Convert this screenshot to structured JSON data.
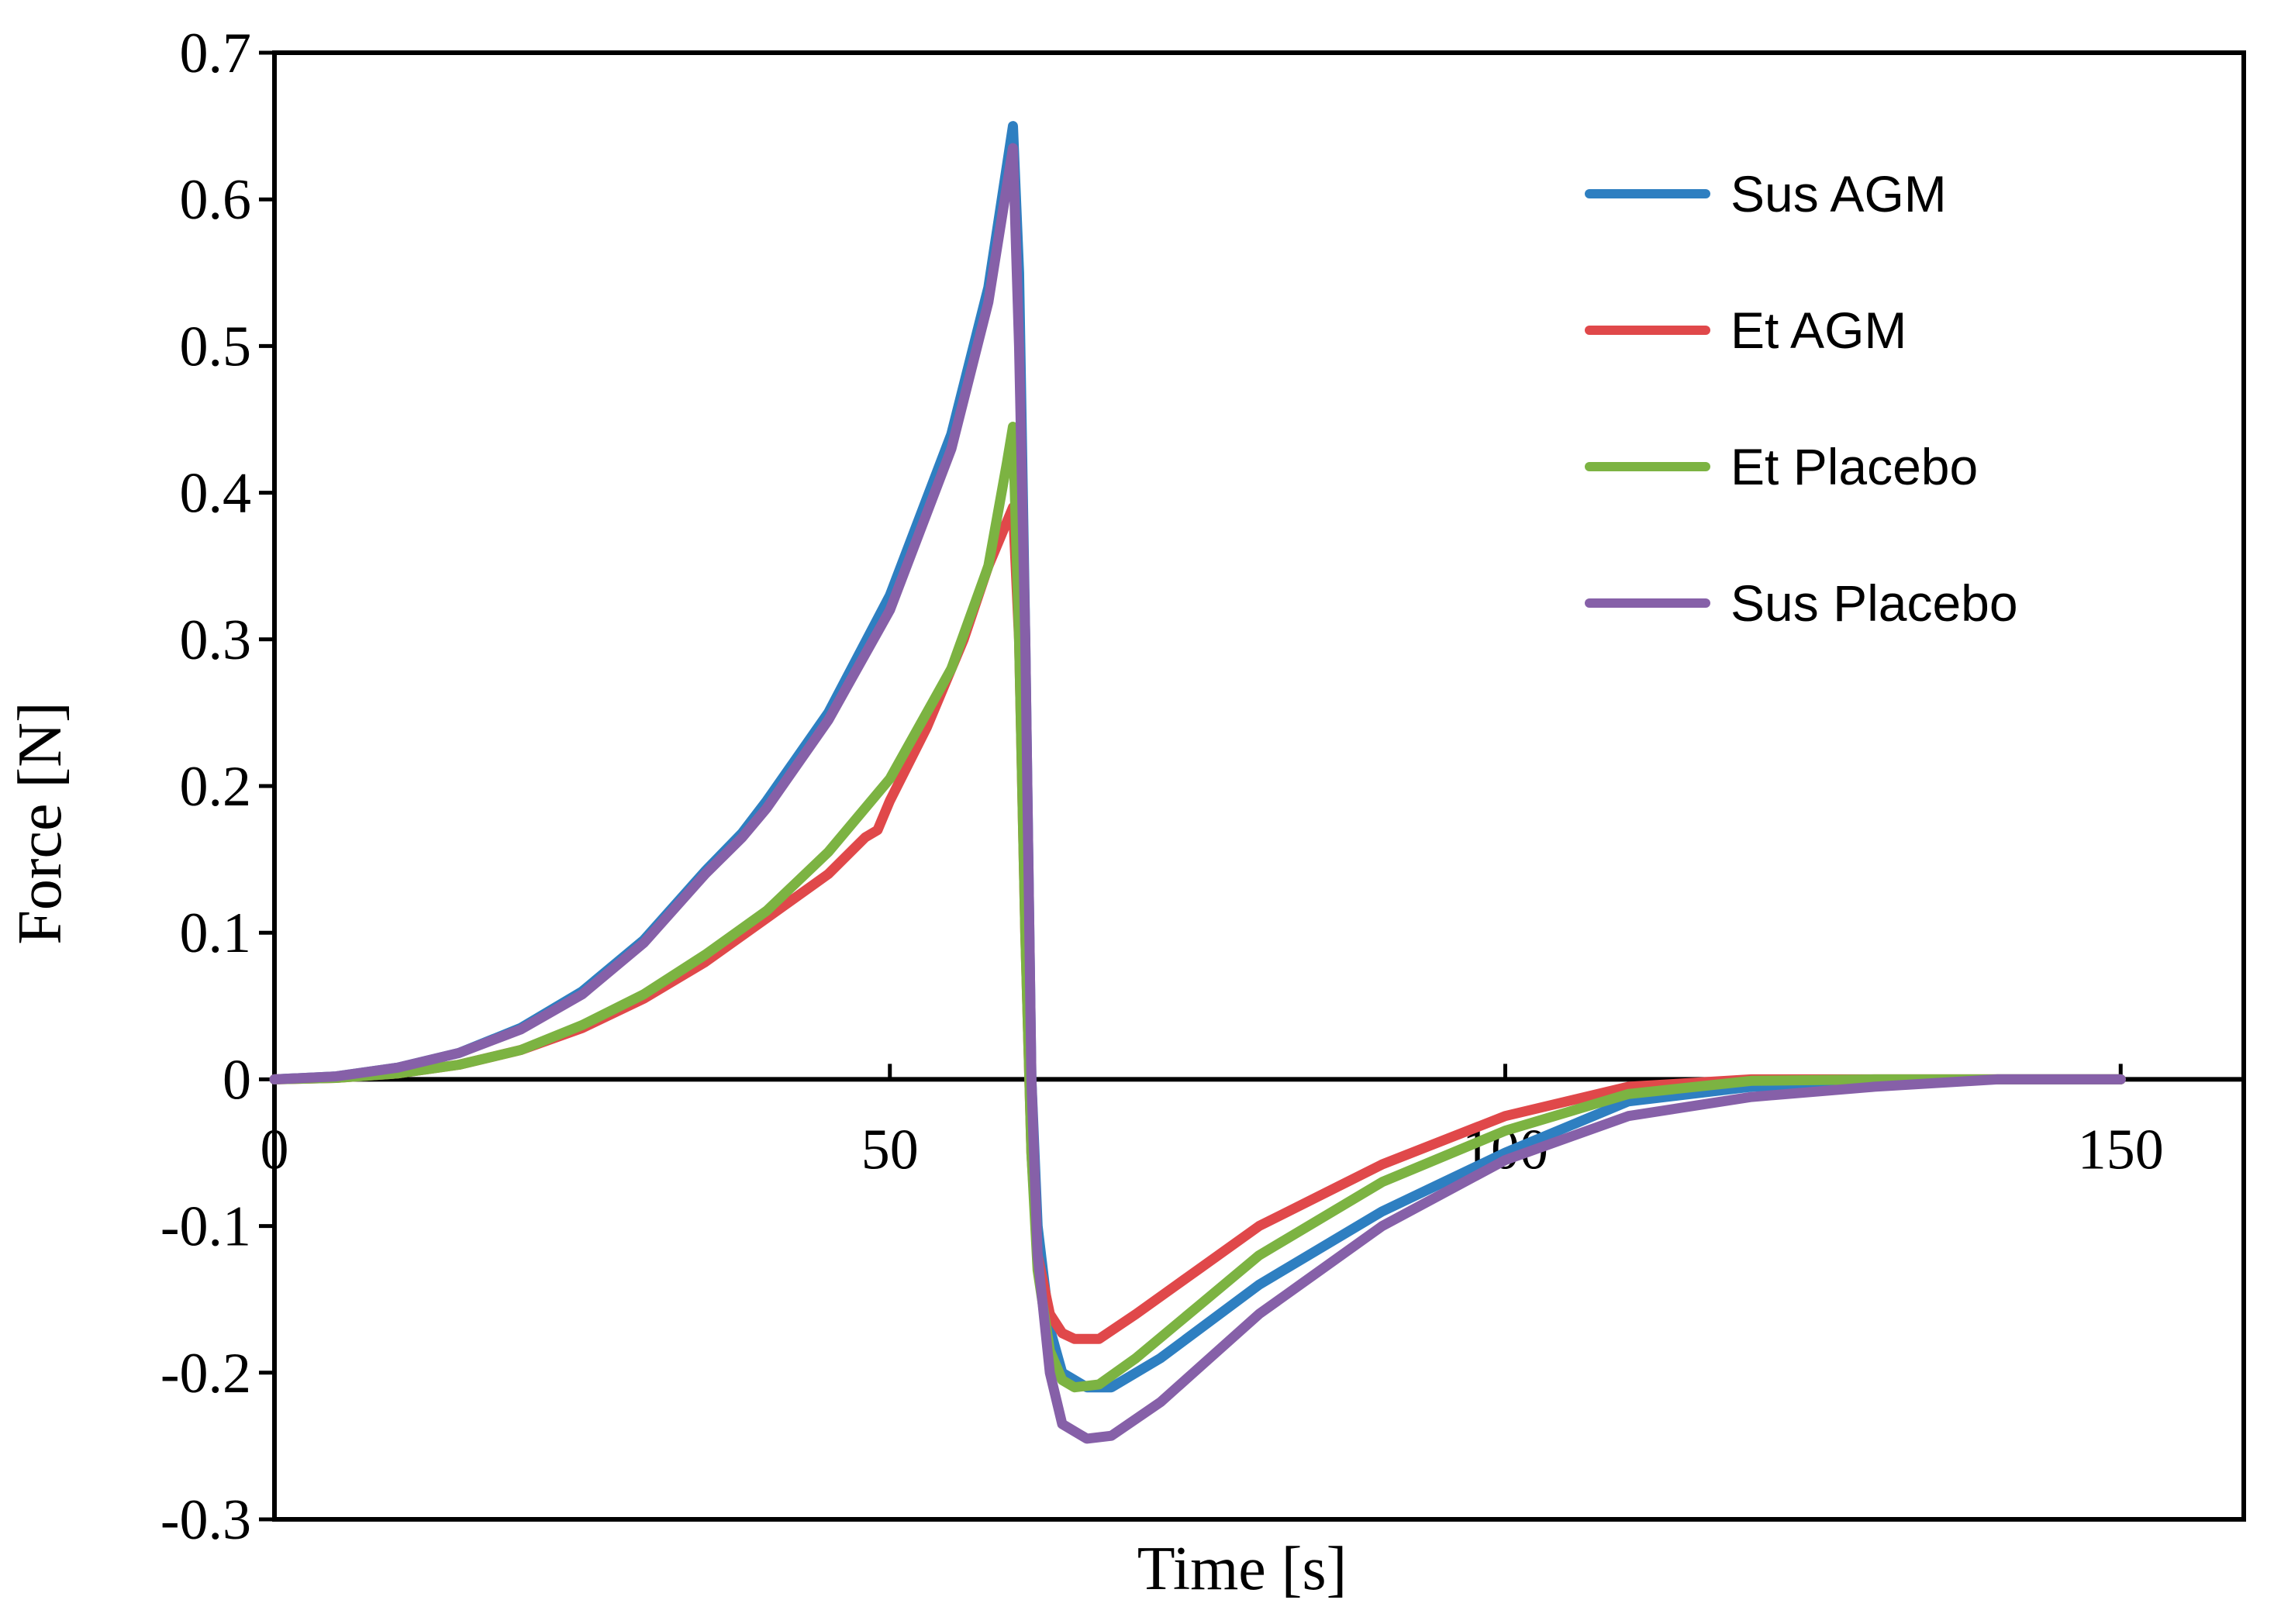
{
  "chart_data": {
    "type": "line",
    "title": "",
    "xlabel": "Time [s]",
    "ylabel": "Force [N]",
    "xlim": [
      0,
      160
    ],
    "ylim": [
      -0.3,
      0.7
    ],
    "xticks": [
      0,
      50,
      100,
      150
    ],
    "xtick_labels": [
      "0",
      "50",
      "100",
      "150"
    ],
    "yticks": [
      0.7,
      0.6,
      0.5,
      0.4,
      0.3,
      0.2,
      0.1,
      0,
      -0.1,
      -0.2,
      -0.3
    ],
    "ytick_labels": [
      "0.7",
      "0.6",
      "0.5",
      "0.4",
      "0.3",
      "0.2",
      "0.1",
      "0",
      "-0.1",
      "-0.2",
      "-0.3"
    ],
    "grid": false,
    "legend_position": "top-right",
    "series": [
      {
        "name": "Sus AGM",
        "color": "#2E7FC1",
        "points": [
          [
            0,
            0
          ],
          [
            5,
            0.002
          ],
          [
            10,
            0.008
          ],
          [
            15,
            0.018
          ],
          [
            20,
            0.035
          ],
          [
            25,
            0.06
          ],
          [
            30,
            0.095
          ],
          [
            35,
            0.142
          ],
          [
            38,
            0.168
          ],
          [
            40,
            0.19
          ],
          [
            45,
            0.25
          ],
          [
            50,
            0.33
          ],
          [
            55,
            0.44
          ],
          [
            58,
            0.54
          ],
          [
            60,
            0.65
          ],
          [
            60.5,
            0.55
          ],
          [
            61,
            0.3
          ],
          [
            61.5,
            0.0
          ],
          [
            62,
            -0.1
          ],
          [
            63,
            -0.17
          ],
          [
            64,
            -0.2
          ],
          [
            66,
            -0.21
          ],
          [
            68,
            -0.21
          ],
          [
            72,
            -0.19
          ],
          [
            80,
            -0.14
          ],
          [
            90,
            -0.09
          ],
          [
            100,
            -0.05
          ],
          [
            110,
            -0.015
          ],
          [
            120,
            -0.005
          ],
          [
            130,
            -0.002
          ],
          [
            140,
            0
          ],
          [
            150,
            0
          ]
        ]
      },
      {
        "name": "Et AGM",
        "color": "#E0484A",
        "points": [
          [
            0,
            0
          ],
          [
            5,
            0.001
          ],
          [
            10,
            0.004
          ],
          [
            15,
            0.01
          ],
          [
            20,
            0.02
          ],
          [
            25,
            0.035
          ],
          [
            30,
            0.055
          ],
          [
            35,
            0.08
          ],
          [
            40,
            0.11
          ],
          [
            45,
            0.14
          ],
          [
            48,
            0.165
          ],
          [
            49,
            0.17
          ],
          [
            50,
            0.19
          ],
          [
            53,
            0.24
          ],
          [
            56,
            0.3
          ],
          [
            58,
            0.35
          ],
          [
            60,
            0.39
          ],
          [
            60.5,
            0.3
          ],
          [
            61,
            0.1
          ],
          [
            61.5,
            -0.05
          ],
          [
            62,
            -0.12
          ],
          [
            63,
            -0.16
          ],
          [
            64,
            -0.173
          ],
          [
            65,
            -0.177
          ],
          [
            67,
            -0.177
          ],
          [
            70,
            -0.16
          ],
          [
            75,
            -0.13
          ],
          [
            80,
            -0.1
          ],
          [
            90,
            -0.058
          ],
          [
            100,
            -0.025
          ],
          [
            110,
            -0.005
          ],
          [
            120,
            0
          ],
          [
            130,
            0
          ],
          [
            140,
            0
          ],
          [
            150,
            0
          ]
        ]
      },
      {
        "name": "Et Placebo",
        "color": "#7CB342",
        "points": [
          [
            0,
            0
          ],
          [
            5,
            0.001
          ],
          [
            10,
            0.004
          ],
          [
            15,
            0.01
          ],
          [
            20,
            0.02
          ],
          [
            25,
            0.037
          ],
          [
            30,
            0.058
          ],
          [
            35,
            0.085
          ],
          [
            40,
            0.115
          ],
          [
            45,
            0.155
          ],
          [
            50,
            0.205
          ],
          [
            55,
            0.28
          ],
          [
            58,
            0.35
          ],
          [
            59.5,
            0.42
          ],
          [
            60,
            0.445
          ],
          [
            60.5,
            0.3
          ],
          [
            61,
            0.1
          ],
          [
            61.5,
            -0.05
          ],
          [
            62,
            -0.13
          ],
          [
            63,
            -0.185
          ],
          [
            64,
            -0.205
          ],
          [
            65,
            -0.21
          ],
          [
            67,
            -0.208
          ],
          [
            70,
            -0.19
          ],
          [
            75,
            -0.155
          ],
          [
            80,
            -0.12
          ],
          [
            90,
            -0.07
          ],
          [
            100,
            -0.035
          ],
          [
            110,
            -0.01
          ],
          [
            120,
            -0.001
          ],
          [
            130,
            0
          ],
          [
            140,
            0
          ],
          [
            150,
            0
          ]
        ]
      },
      {
        "name": "Sus Placebo",
        "color": "#8660A8",
        "points": [
          [
            0,
            0
          ],
          [
            5,
            0.002
          ],
          [
            10,
            0.008
          ],
          [
            15,
            0.018
          ],
          [
            20,
            0.034
          ],
          [
            25,
            0.058
          ],
          [
            30,
            0.093
          ],
          [
            35,
            0.14
          ],
          [
            38,
            0.165
          ],
          [
            40,
            0.185
          ],
          [
            45,
            0.245
          ],
          [
            50,
            0.32
          ],
          [
            55,
            0.43
          ],
          [
            58,
            0.53
          ],
          [
            60,
            0.635
          ],
          [
            60.5,
            0.5
          ],
          [
            61,
            0.3
          ],
          [
            61.5,
            0.0
          ],
          [
            62,
            -0.12
          ],
          [
            63,
            -0.2
          ],
          [
            64,
            -0.235
          ],
          [
            66,
            -0.245
          ],
          [
            68,
            -0.243
          ],
          [
            72,
            -0.22
          ],
          [
            80,
            -0.16
          ],
          [
            90,
            -0.1
          ],
          [
            100,
            -0.055
          ],
          [
            110,
            -0.025
          ],
          [
            120,
            -0.012
          ],
          [
            130,
            -0.005
          ],
          [
            140,
            0
          ],
          [
            150,
            0
          ]
        ]
      }
    ]
  }
}
